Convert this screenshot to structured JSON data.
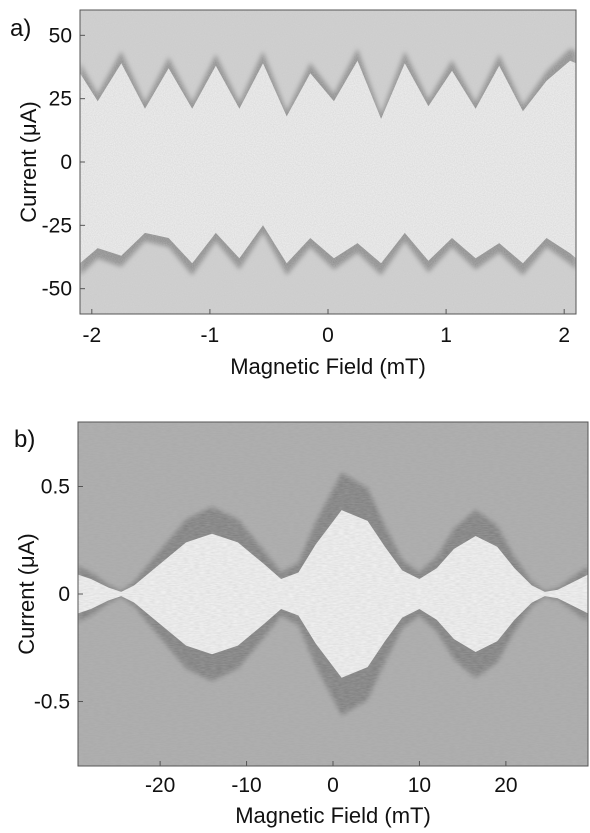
{
  "chart_data": [
    {
      "type": "heatmap",
      "panel_label": "a)",
      "xlabel": "Magnetic Field (mT)",
      "ylabel": "Current (μA)",
      "xlim": [
        -2.1,
        2.1
      ],
      "ylim": [
        -60,
        60
      ],
      "x_ticks": [
        -2,
        -1,
        0,
        1,
        2
      ],
      "x_tick_labels": [
        "-2",
        "-1",
        "0",
        "1",
        "2"
      ],
      "y_ticks": [
        50,
        25,
        0,
        -25,
        -50
      ],
      "y_tick_labels": [
        "50",
        "25",
        "0",
        "-25",
        "-50"
      ],
      "background_color": "#d2d2d2",
      "lobe_color": "#f1f1f1",
      "edge_color": "#8a8a8a",
      "critical_current_envelope": {
        "x": [
          -2.1,
          -1.95,
          -1.75,
          -1.55,
          -1.35,
          -1.15,
          -0.95,
          -0.75,
          -0.55,
          -0.35,
          -0.15,
          0.05,
          0.25,
          0.45,
          0.65,
          0.85,
          1.05,
          1.25,
          1.45,
          1.65,
          1.85,
          2.05,
          2.1
        ],
        "upper": [
          35,
          24,
          39,
          21,
          37,
          21,
          38,
          21,
          39,
          18,
          35,
          24,
          40,
          17,
          39,
          22,
          36,
          21,
          38,
          20,
          32,
          40,
          39
        ],
        "lower": [
          -40,
          -34,
          -37,
          -28,
          -30,
          -40,
          -28,
          -38,
          -25,
          -40,
          -30,
          -38,
          -32,
          -40,
          -28,
          -39,
          -30,
          -38,
          -32,
          -40,
          -30,
          -36,
          -38
        ]
      }
    },
    {
      "type": "heatmap",
      "panel_label": "b)",
      "xlabel": "Magnetic Field (mT)",
      "ylabel": "Current (μA)",
      "xlim": [
        -29.5,
        29.5
      ],
      "ylim": [
        -0.8,
        0.8
      ],
      "x_ticks": [
        -20,
        -10,
        0,
        10,
        20
      ],
      "x_tick_labels": [
        "-20",
        "-10",
        "0",
        "10",
        "20"
      ],
      "y_ticks": [
        0.5,
        0,
        -0.5
      ],
      "y_tick_labels": [
        "0.5",
        "0",
        "-0.5"
      ],
      "background_color": "#a9a9a9",
      "lobe_color": "#f5f5f5",
      "edge_color": "#7c7c7c",
      "critical_current_envelope": {
        "x": [
          -29.5,
          -28,
          -26,
          -24.5,
          -23,
          -20,
          -17,
          -14,
          -11,
          -8,
          -6,
          -4,
          -2,
          1,
          4,
          6,
          8,
          10,
          12,
          14,
          16.5,
          19,
          21,
          23,
          24.5,
          26,
          28,
          29.5
        ],
        "upper": [
          0.09,
          0.07,
          0.03,
          0.01,
          0.04,
          0.14,
          0.24,
          0.28,
          0.24,
          0.14,
          0.07,
          0.1,
          0.23,
          0.39,
          0.34,
          0.22,
          0.11,
          0.07,
          0.12,
          0.21,
          0.27,
          0.22,
          0.12,
          0.04,
          0.01,
          0.02,
          0.06,
          0.09
        ]
      }
    }
  ]
}
